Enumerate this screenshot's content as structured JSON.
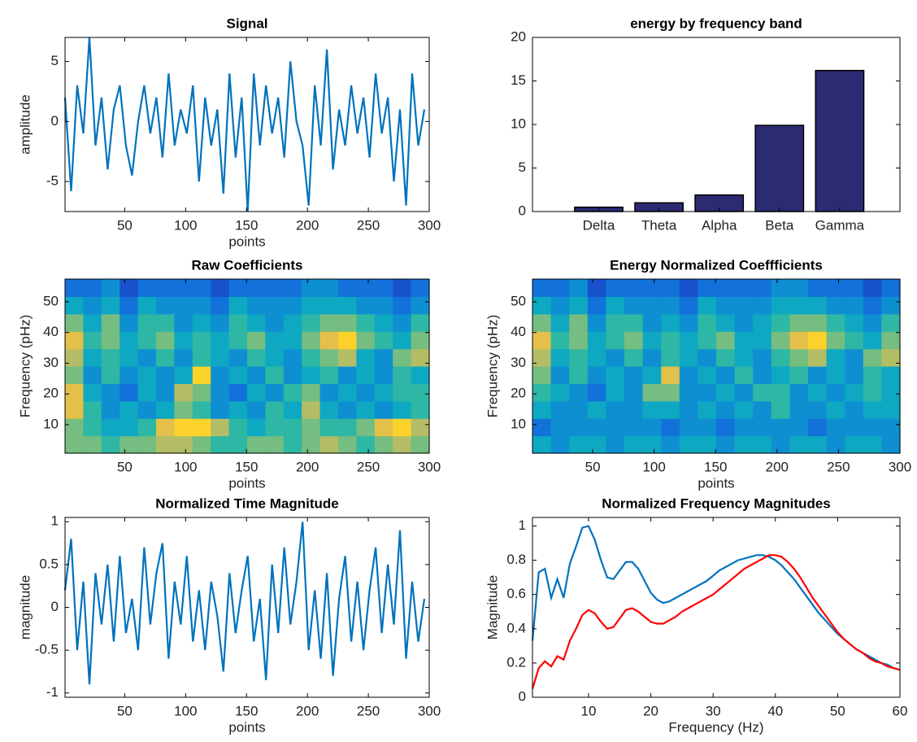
{
  "chart_data": [
    {
      "type": "line",
      "title": "Signal",
      "xlabel": "points",
      "ylabel": "amplitude",
      "color": "#0072bd",
      "xlim": [
        1,
        300
      ],
      "ylim": [
        -7.5,
        7
      ],
      "xticks": [
        50,
        100,
        150,
        200,
        250,
        300
      ],
      "yticks": [
        -5,
        0,
        5
      ],
      "x": [
        1,
        6,
        11,
        16,
        21,
        26,
        31,
        36,
        41,
        46,
        51,
        56,
        61,
        66,
        71,
        76,
        81,
        86,
        91,
        96,
        101,
        106,
        111,
        116,
        121,
        126,
        131,
        136,
        141,
        146,
        151,
        156,
        161,
        166,
        171,
        176,
        181,
        186,
        191,
        196,
        201,
        206,
        211,
        216,
        221,
        226,
        231,
        236,
        241,
        246,
        251,
        256,
        261,
        266,
        271,
        276,
        281,
        286,
        291,
        296
      ],
      "values": [
        2,
        -5.8,
        3,
        -1,
        7,
        -2,
        2,
        -4,
        1,
        3,
        -2,
        -4.5,
        0,
        3,
        -1,
        2,
        -3,
        4,
        -2,
        1,
        -1,
        3,
        -5,
        2,
        -2,
        1,
        -6,
        4,
        -3,
        2,
        -7.5,
        4,
        -2,
        3,
        -1,
        2,
        -3,
        5,
        0,
        -2,
        -7,
        3,
        -2,
        6,
        -4,
        1,
        -2,
        3,
        -1,
        2,
        -3,
        4,
        -1,
        2,
        -5,
        1,
        -7,
        4,
        -2,
        1
      ]
    },
    {
      "type": "bar",
      "title": "energy by frequency band",
      "color": "#2c2a72",
      "categories": [
        "Delta",
        "Theta",
        "Alpha",
        "Beta",
        "Gamma"
      ],
      "values": [
        0.5,
        1.0,
        1.9,
        9.9,
        16.2
      ],
      "ylim": [
        0,
        20
      ],
      "yticks": [
        0,
        5,
        10,
        15,
        20
      ]
    },
    {
      "type": "heatmap",
      "title": "Raw Coefficients",
      "xlabel": "points",
      "ylabel": "Frequency (pHz)",
      "xlim": [
        1,
        300
      ],
      "ylim": [
        0.7,
        57.4
      ],
      "xticks": [
        50,
        100,
        150,
        200,
        250,
        300
      ],
      "yticks": [
        10,
        20,
        30,
        40,
        50
      ],
      "values": [
        [
          0.6,
          0.6,
          0.5,
          0.6,
          0.6,
          0.7,
          0.7,
          0.6,
          0.5,
          0.5,
          0.6,
          0.6,
          0.5,
          0.6,
          0.7,
          0.6,
          0.5,
          0.6,
          0.7,
          0.6
        ],
        [
          0.6,
          0.5,
          0.4,
          0.4,
          0.5,
          0.8,
          0.9,
          0.9,
          0.7,
          0.5,
          0.4,
          0.5,
          0.5,
          0.6,
          0.5,
          0.5,
          0.6,
          0.8,
          0.9,
          0.7
        ],
        [
          0.8,
          0.5,
          0.3,
          0.4,
          0.3,
          0.4,
          0.6,
          0.5,
          0.3,
          0.4,
          0.3,
          0.5,
          0.4,
          0.7,
          0.4,
          0.3,
          0.4,
          0.3,
          0.4,
          0.5
        ],
        [
          0.8,
          0.4,
          0.3,
          0.2,
          0.4,
          0.3,
          0.7,
          0.6,
          0.3,
          0.2,
          0.4,
          0.3,
          0.5,
          0.6,
          0.3,
          0.4,
          0.3,
          0.4,
          0.5,
          0.5
        ],
        [
          0.6,
          0.3,
          0.5,
          0.3,
          0.4,
          0.3,
          0.4,
          0.9,
          0.3,
          0.4,
          0.3,
          0.5,
          0.3,
          0.4,
          0.5,
          0.3,
          0.4,
          0.3,
          0.5,
          0.4
        ],
        [
          0.7,
          0.4,
          0.5,
          0.4,
          0.3,
          0.5,
          0.3,
          0.5,
          0.4,
          0.3,
          0.5,
          0.4,
          0.3,
          0.5,
          0.6,
          0.7,
          0.4,
          0.3,
          0.6,
          0.7
        ],
        [
          0.8,
          0.5,
          0.6,
          0.4,
          0.5,
          0.6,
          0.4,
          0.5,
          0.4,
          0.5,
          0.6,
          0.4,
          0.4,
          0.6,
          0.8,
          0.9,
          0.6,
          0.5,
          0.4,
          0.6
        ],
        [
          0.6,
          0.4,
          0.6,
          0.3,
          0.5,
          0.5,
          0.3,
          0.4,
          0.3,
          0.5,
          0.4,
          0.3,
          0.4,
          0.5,
          0.6,
          0.6,
          0.5,
          0.4,
          0.3,
          0.5
        ],
        [
          0.4,
          0.3,
          0.4,
          0.2,
          0.4,
          0.3,
          0.3,
          0.3,
          0.2,
          0.4,
          0.3,
          0.3,
          0.3,
          0.4,
          0.4,
          0.4,
          0.3,
          0.3,
          0.2,
          0.3
        ],
        [
          0.2,
          0.2,
          0.3,
          0.1,
          0.2,
          0.2,
          0.2,
          0.2,
          0.1,
          0.2,
          0.2,
          0.2,
          0.2,
          0.3,
          0.3,
          0.2,
          0.2,
          0.2,
          0.1,
          0.2
        ]
      ]
    },
    {
      "type": "heatmap",
      "title": "Energy Normalized Coeffficients",
      "xlabel": "points",
      "ylabel": "Frequency (pHz)",
      "xlim": [
        1,
        300
      ],
      "ylim": [
        0.7,
        57.4
      ],
      "xticks": [
        50,
        100,
        150,
        200,
        250,
        300
      ],
      "yticks": [
        10,
        20,
        30,
        40,
        50
      ],
      "values": [
        [
          0.4,
          0.3,
          0.4,
          0.4,
          0.3,
          0.4,
          0.4,
          0.3,
          0.4,
          0.4,
          0.3,
          0.4,
          0.4,
          0.3,
          0.4,
          0.4,
          0.3,
          0.4,
          0.4,
          0.3
        ],
        [
          0.2,
          0.3,
          0.3,
          0.3,
          0.3,
          0.3,
          0.3,
          0.2,
          0.3,
          0.3,
          0.2,
          0.3,
          0.3,
          0.3,
          0.3,
          0.2,
          0.3,
          0.3,
          0.3,
          0.3
        ],
        [
          0.4,
          0.3,
          0.3,
          0.4,
          0.3,
          0.3,
          0.4,
          0.4,
          0.3,
          0.4,
          0.3,
          0.4,
          0.3,
          0.5,
          0.3,
          0.3,
          0.4,
          0.3,
          0.4,
          0.4
        ],
        [
          0.5,
          0.4,
          0.3,
          0.2,
          0.4,
          0.3,
          0.6,
          0.6,
          0.3,
          0.3,
          0.4,
          0.3,
          0.5,
          0.5,
          0.3,
          0.4,
          0.3,
          0.4,
          0.5,
          0.4
        ],
        [
          0.6,
          0.3,
          0.5,
          0.3,
          0.4,
          0.3,
          0.4,
          0.8,
          0.3,
          0.4,
          0.3,
          0.5,
          0.3,
          0.4,
          0.5,
          0.3,
          0.4,
          0.3,
          0.5,
          0.4
        ],
        [
          0.7,
          0.4,
          0.5,
          0.4,
          0.3,
          0.5,
          0.3,
          0.5,
          0.4,
          0.3,
          0.5,
          0.4,
          0.3,
          0.5,
          0.6,
          0.7,
          0.4,
          0.3,
          0.6,
          0.7
        ],
        [
          0.8,
          0.5,
          0.6,
          0.4,
          0.5,
          0.6,
          0.4,
          0.5,
          0.4,
          0.5,
          0.6,
          0.4,
          0.4,
          0.6,
          0.8,
          0.9,
          0.6,
          0.5,
          0.4,
          0.6
        ],
        [
          0.6,
          0.4,
          0.6,
          0.3,
          0.5,
          0.5,
          0.3,
          0.4,
          0.3,
          0.5,
          0.4,
          0.3,
          0.4,
          0.5,
          0.6,
          0.6,
          0.5,
          0.4,
          0.3,
          0.5
        ],
        [
          0.4,
          0.3,
          0.4,
          0.2,
          0.4,
          0.3,
          0.3,
          0.3,
          0.2,
          0.4,
          0.3,
          0.3,
          0.3,
          0.4,
          0.4,
          0.4,
          0.3,
          0.3,
          0.2,
          0.3
        ],
        [
          0.2,
          0.2,
          0.3,
          0.1,
          0.2,
          0.2,
          0.2,
          0.2,
          0.1,
          0.2,
          0.2,
          0.2,
          0.2,
          0.3,
          0.3,
          0.2,
          0.2,
          0.2,
          0.1,
          0.2
        ]
      ]
    },
    {
      "type": "line",
      "title": "Normalized Time Magnitude",
      "xlabel": "points",
      "ylabel": "magnitude",
      "color": "#0072bd",
      "xlim": [
        1,
        300
      ],
      "ylim": [
        -1.05,
        1.05
      ],
      "xticks": [
        50,
        100,
        150,
        200,
        250,
        300
      ],
      "yticks": [
        -1,
        -0.5,
        0,
        0.5,
        1
      ],
      "x": [
        1,
        6,
        11,
        16,
        21,
        26,
        31,
        36,
        41,
        46,
        51,
        56,
        61,
        66,
        71,
        76,
        81,
        86,
        91,
        96,
        101,
        106,
        111,
        116,
        121,
        126,
        131,
        136,
        141,
        146,
        151,
        156,
        161,
        166,
        171,
        176,
        181,
        186,
        191,
        196,
        201,
        206,
        211,
        216,
        221,
        226,
        231,
        236,
        241,
        246,
        251,
        256,
        261,
        266,
        271,
        276,
        281,
        286,
        291,
        296
      ],
      "values": [
        0.2,
        0.8,
        -0.5,
        0.3,
        -0.9,
        0.4,
        -0.2,
        0.5,
        -0.4,
        0.6,
        -0.3,
        0.1,
        -0.5,
        0.7,
        -0.2,
        0.4,
        0.75,
        -0.6,
        0.3,
        -0.2,
        0.6,
        -0.4,
        0.2,
        -0.5,
        0.3,
        -0.1,
        -0.75,
        0.4,
        -0.3,
        0.2,
        0.6,
        -0.4,
        0.1,
        -0.85,
        0.5,
        -0.3,
        0.7,
        -0.2,
        0.3,
        1,
        -0.5,
        0.2,
        -0.6,
        0.4,
        -0.8,
        0.1,
        0.6,
        -0.4,
        0.3,
        -0.5,
        0.2,
        0.7,
        -0.3,
        0.5,
        -0.2,
        0.9,
        -0.6,
        0.3,
        -0.4,
        0.1
      ]
    },
    {
      "type": "line",
      "title": "Normalized Frequency Magnitudes",
      "xlabel": "Frequency (Hz)",
      "ylabel": "Magnitude",
      "xlim": [
        1,
        60
      ],
      "ylim": [
        0,
        1.05
      ],
      "xticks": [
        10,
        20,
        30,
        40,
        50,
        60
      ],
      "yticks": [
        0,
        0.2,
        0.4,
        0.6,
        0.8,
        1
      ],
      "x": [
        1,
        2,
        3,
        4,
        5,
        6,
        7,
        8,
        9,
        10,
        11,
        12,
        13,
        14,
        15,
        16,
        17,
        18,
        19,
        20,
        21,
        22,
        23,
        24,
        25,
        26,
        27,
        28,
        29,
        30,
        31,
        32,
        33,
        34,
        35,
        36,
        37,
        38,
        39,
        40,
        41,
        42,
        43,
        44,
        45,
        46,
        47,
        48,
        49,
        50,
        51,
        52,
        53,
        54,
        55,
        56,
        57,
        58,
        59,
        60
      ],
      "series": [
        {
          "color": "#0072bd",
          "values": [
            0.33,
            0.73,
            0.75,
            0.58,
            0.69,
            0.58,
            0.78,
            0.88,
            0.99,
            1.0,
            0.92,
            0.8,
            0.7,
            0.69,
            0.74,
            0.79,
            0.79,
            0.75,
            0.68,
            0.61,
            0.57,
            0.55,
            0.56,
            0.58,
            0.6,
            0.62,
            0.64,
            0.66,
            0.68,
            0.71,
            0.74,
            0.76,
            0.78,
            0.8,
            0.81,
            0.82,
            0.83,
            0.83,
            0.82,
            0.8,
            0.77,
            0.73,
            0.69,
            0.64,
            0.59,
            0.54,
            0.49,
            0.45,
            0.41,
            0.37,
            0.34,
            0.31,
            0.28,
            0.26,
            0.24,
            0.22,
            0.2,
            0.19,
            0.17,
            0.16
          ]
        },
        {
          "color": "#ff0000",
          "values": [
            0.05,
            0.17,
            0.21,
            0.18,
            0.24,
            0.22,
            0.33,
            0.4,
            0.48,
            0.51,
            0.49,
            0.44,
            0.4,
            0.41,
            0.46,
            0.51,
            0.52,
            0.5,
            0.47,
            0.44,
            0.43,
            0.43,
            0.45,
            0.47,
            0.5,
            0.52,
            0.54,
            0.56,
            0.58,
            0.6,
            0.63,
            0.66,
            0.69,
            0.72,
            0.75,
            0.77,
            0.79,
            0.81,
            0.83,
            0.83,
            0.82,
            0.79,
            0.75,
            0.7,
            0.64,
            0.58,
            0.53,
            0.48,
            0.43,
            0.38,
            0.34,
            0.31,
            0.28,
            0.26,
            0.23,
            0.21,
            0.2,
            0.18,
            0.17,
            0.16
          ]
        }
      ]
    }
  ]
}
